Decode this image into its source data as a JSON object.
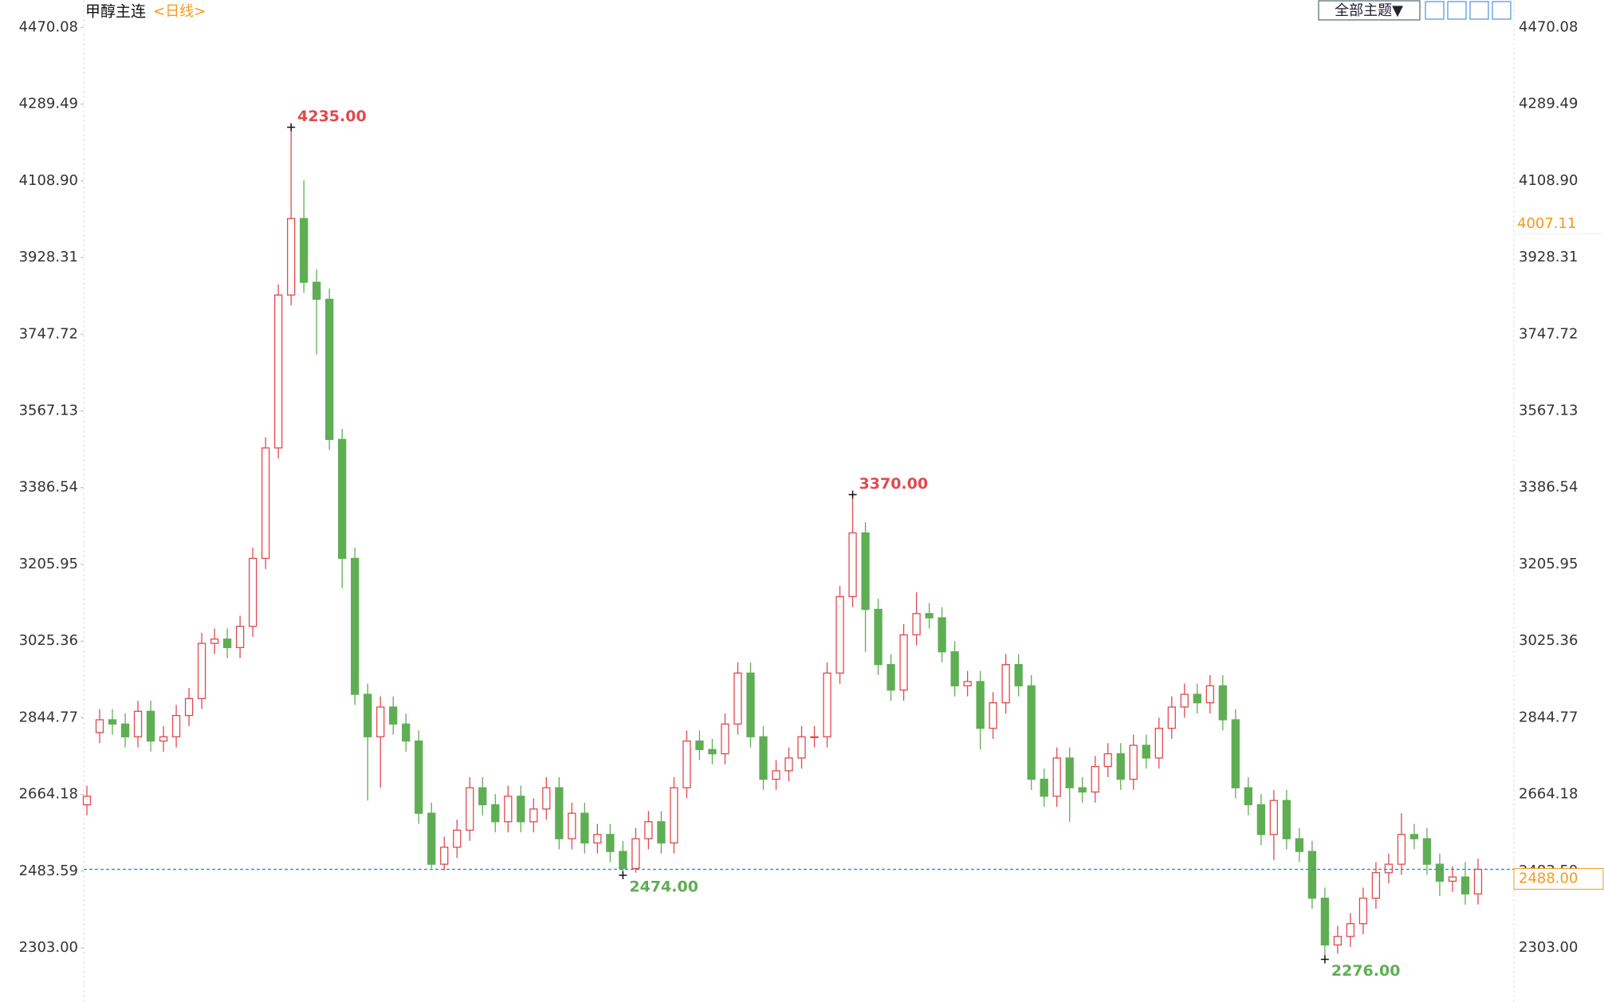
{
  "chart_data": {
    "type": "candlestick",
    "title": "甲醇主连",
    "subtitle": "<日线>",
    "up_color": "#e2494e",
    "down_color": "#5fae54",
    "grid": false,
    "ylim": [
      2185,
      4497
    ],
    "yticks": [
      {
        "value": 2303,
        "label": "2303.00"
      },
      2483.59,
      2664.18,
      2844.77,
      3025.36,
      3205.95,
      3386.54,
      3567.13,
      3747.72,
      3928.31,
      {
        "value": 4108.9,
        "label": "4108.90"
      },
      4289.49,
      4470.08
    ],
    "open": [
      2640,
      2810,
      2840,
      2830,
      2800,
      2860,
      2790,
      2800,
      2850,
      2890,
      3020,
      3030,
      3010,
      3060,
      3220,
      3480,
      3840,
      4020,
      3870,
      3830,
      3500,
      3220,
      2900,
      2800,
      2870,
      2830,
      2790,
      2620,
      2500,
      2540,
      2580,
      2680,
      2640,
      2600,
      2660,
      2600,
      2630,
      2680,
      2560,
      2620,
      2550,
      2570,
      2530,
      2490,
      2560,
      2600,
      2550,
      2680,
      2790,
      2770,
      2760,
      2830,
      2950,
      2800,
      2700,
      2720,
      2750,
      2800,
      2800,
      2950,
      3130,
      3280,
      3100,
      2970,
      2910,
      3040,
      3090,
      3080,
      3000,
      2920,
      2930,
      2820,
      2880,
      2970,
      2920,
      2700,
      2660,
      2750,
      2680,
      2670,
      2730,
      2760,
      2700,
      2780,
      2750,
      2820,
      2870,
      2900,
      2880,
      2920,
      2840,
      2680,
      2640,
      2570,
      2650,
      2560,
      2530,
      2420,
      2310,
      2330,
      2360,
      2420,
      2480,
      2500,
      2570,
      2560,
      2500,
      2460,
      2470,
      2430
    ],
    "high": [
      2685,
      2865,
      2865,
      2855,
      2885,
      2885,
      2825,
      2875,
      2915,
      3045,
      3055,
      3055,
      3085,
      3245,
      3505,
      3865,
      4235,
      4110,
      3900,
      3855,
      3525,
      3245,
      2925,
      2895,
      2895,
      2855,
      2815,
      2645,
      2565,
      2605,
      2705,
      2705,
      2665,
      2685,
      2685,
      2655,
      2705,
      2705,
      2645,
      2645,
      2595,
      2595,
      2555,
      2585,
      2625,
      2625,
      2705,
      2815,
      2815,
      2795,
      2855,
      2975,
      2975,
      2825,
      2745,
      2775,
      2825,
      2825,
      2975,
      3155,
      3370,
      3305,
      3125,
      2995,
      3065,
      3140,
      3115,
      3105,
      3025,
      2955,
      2955,
      2905,
      2995,
      2995,
      2945,
      2725,
      2775,
      2775,
      2705,
      2755,
      2785,
      2785,
      2805,
      2805,
      2845,
      2895,
      2925,
      2925,
      2945,
      2945,
      2865,
      2705,
      2665,
      2675,
      2675,
      2585,
      2555,
      2445,
      2355,
      2385,
      2445,
      2505,
      2525,
      2620,
      2595,
      2585,
      2525,
      2495,
      2505,
      2513
    ],
    "low": [
      2615,
      2785,
      2805,
      2775,
      2775,
      2765,
      2765,
      2775,
      2825,
      2865,
      2995,
      2985,
      2985,
      3035,
      3195,
      3455,
      3815,
      3845,
      3700,
      3475,
      3150,
      2875,
      2650,
      2680,
      2805,
      2765,
      2595,
      2490,
      2485,
      2515,
      2555,
      2615,
      2575,
      2575,
      2575,
      2575,
      2605,
      2535,
      2535,
      2525,
      2525,
      2505,
      2474,
      2480,
      2535,
      2525,
      2525,
      2655,
      2745,
      2735,
      2735,
      2805,
      2775,
      2675,
      2675,
      2695,
      2725,
      2775,
      2775,
      2925,
      3105,
      3000,
      2945,
      2885,
      2885,
      3015,
      3055,
      2975,
      2895,
      2895,
      2770,
      2795,
      2855,
      2895,
      2675,
      2635,
      2635,
      2600,
      2645,
      2645,
      2705,
      2675,
      2675,
      2725,
      2725,
      2795,
      2845,
      2855,
      2855,
      2815,
      2655,
      2615,
      2545,
      2510,
      2535,
      2505,
      2395,
      2276,
      2290,
      2305,
      2335,
      2395,
      2455,
      2475,
      2535,
      2475,
      2425,
      2435,
      2405,
      2405
    ],
    "close": [
      2660,
      2840,
      2830,
      2800,
      2860,
      2790,
      2800,
      2850,
      2890,
      3020,
      3030,
      3010,
      3060,
      3220,
      3480,
      3840,
      4020,
      3870,
      3830,
      3500,
      3220,
      2900,
      2800,
      2870,
      2830,
      2790,
      2620,
      2500,
      2540,
      2580,
      2680,
      2640,
      2600,
      2660,
      2600,
      2630,
      2680,
      2560,
      2620,
      2550,
      2570,
      2530,
      2490,
      2560,
      2600,
      2550,
      2680,
      2790,
      2770,
      2760,
      2830,
      2950,
      2800,
      2700,
      2720,
      2750,
      2800,
      2800,
      2950,
      3130,
      3280,
      3100,
      2970,
      2910,
      3040,
      3090,
      3080,
      3000,
      2920,
      2930,
      2820,
      2880,
      2970,
      2920,
      2700,
      2660,
      2750,
      2680,
      2670,
      2730,
      2760,
      2700,
      2780,
      2750,
      2820,
      2870,
      2900,
      2880,
      2920,
      2840,
      2680,
      2640,
      2570,
      2650,
      2560,
      2530,
      2420,
      2310,
      2330,
      2360,
      2420,
      2480,
      2500,
      2570,
      2560,
      2500,
      2460,
      2470,
      2430,
      2488
    ],
    "annotations": [
      {
        "value": 4235,
        "label": "4235.00"
      },
      {
        "value": 3370,
        "label": "3370.00"
      },
      {
        "value": 2474,
        "label": "2474.00"
      },
      {
        "value": 2276,
        "label": "2276.00"
      }
    ],
    "last_price": {
      "value": 2488,
      "label": "2488.00",
      "color": "#f39a1e"
    },
    "marker": {
      "value": 4007.11,
      "label": "4007.11",
      "color": "#f39a1e"
    }
  },
  "toolbar": {
    "theme": "全部主题▼"
  }
}
